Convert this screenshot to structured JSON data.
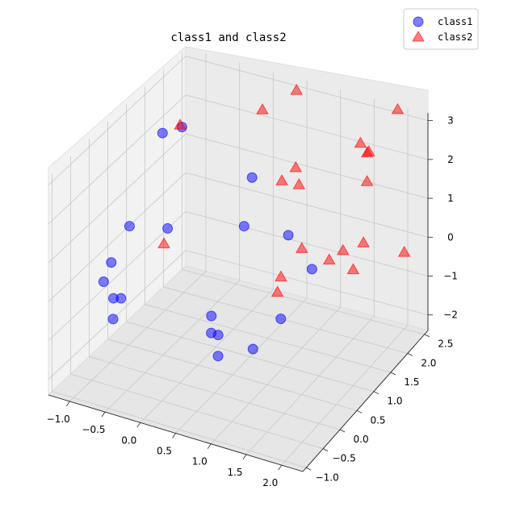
{
  "chart_data": {
    "type": "scatter",
    "title": "class1 and class2",
    "xlabel": "",
    "ylabel": "",
    "zlabel": "",
    "xlim": [
      -1.3,
      2.3
    ],
    "ylim": [
      -1.1,
      2.6
    ],
    "zlim": [
      -2.4,
      3.2
    ],
    "x_ticks": [
      "−1.0",
      "−0.5",
      "0.0",
      "0.5",
      "1.0",
      "1.5",
      "2.0"
    ],
    "y_ticks": [
      "−1.0",
      "−0.5",
      "0.0",
      "0.5",
      "1.0",
      "1.5",
      "2.0",
      "2.5"
    ],
    "z_ticks": [
      "−2",
      "−1",
      "0",
      "1",
      "2",
      "3"
    ],
    "legend_position": "top-right",
    "grid": true,
    "series": [
      {
        "name": "class1",
        "marker": "circle",
        "color": "#0000ff",
        "points": [
          {
            "x": -1.15,
            "y": 1.7,
            "z": 1.9
          },
          {
            "x": -1.0,
            "y": 1.95,
            "z": 1.9
          },
          {
            "x": -1.2,
            "y": 0.9,
            "z": 0.2
          },
          {
            "x": -0.7,
            "y": 1.0,
            "z": 0.3
          },
          {
            "x": -1.25,
            "y": 0.5,
            "z": -0.4
          },
          {
            "x": -1.2,
            "y": 0.2,
            "z": -0.6
          },
          {
            "x": -0.95,
            "y": 0.2,
            "z": -0.9
          },
          {
            "x": -0.9,
            "y": -0.1,
            "z": -0.6
          },
          {
            "x": -0.8,
            "y": -0.3,
            "z": -0.9
          },
          {
            "x": -0.1,
            "y": 2.2,
            "z": 0.8
          },
          {
            "x": 0.1,
            "y": 1.6,
            "z": 0.2
          },
          {
            "x": 0.3,
            "y": 0.3,
            "z": -0.8
          },
          {
            "x": 0.4,
            "y": 0.1,
            "z": -1.0
          },
          {
            "x": 0.5,
            "y": 0.1,
            "z": -1.0
          },
          {
            "x": 0.6,
            "y": -0.1,
            "z": -1.3
          },
          {
            "x": 0.8,
            "y": 1.5,
            "z": 0.4
          },
          {
            "x": 1.2,
            "y": 0.5,
            "z": -0.6
          },
          {
            "x": 1.0,
            "y": 0.1,
            "z": -1.1
          },
          {
            "x": 1.4,
            "y": 1.0,
            "z": 0.3
          }
        ]
      },
      {
        "name": "class2",
        "marker": "triangle",
        "color": "#ff0000",
        "points": [
          {
            "x": -1.0,
            "y": 1.9,
            "z": 2.0
          },
          {
            "x": -0.7,
            "y": 0.9,
            "z": 0.0
          },
          {
            "x": 0.0,
            "y": 2.3,
            "z": 2.5
          },
          {
            "x": 0.4,
            "y": 2.5,
            "z": 3.0
          },
          {
            "x": 0.55,
            "y": 1.8,
            "z": 1.4
          },
          {
            "x": 0.65,
            "y": 2.0,
            "z": 1.6
          },
          {
            "x": 0.75,
            "y": 1.9,
            "z": 1.3
          },
          {
            "x": 1.4,
            "y": 2.4,
            "z": 2.2
          },
          {
            "x": 1.5,
            "y": 2.4,
            "z": 2.0
          },
          {
            "x": 1.55,
            "y": 2.35,
            "z": 2.1
          },
          {
            "x": 1.6,
            "y": 2.2,
            "z": 1.5
          },
          {
            "x": 1.1,
            "y": 1.3,
            "z": 0.4
          },
          {
            "x": 1.0,
            "y": 0.9,
            "z": 0.0
          },
          {
            "x": 1.0,
            "y": 0.8,
            "z": -0.3
          },
          {
            "x": 1.5,
            "y": 1.3,
            "z": 0.3
          },
          {
            "x": 1.6,
            "y": 1.5,
            "z": 0.4
          },
          {
            "x": 1.8,
            "y": 1.7,
            "z": 0.5
          },
          {
            "x": 1.8,
            "y": 1.4,
            "z": 0.1
          },
          {
            "x": 2.3,
            "y": 1.9,
            "z": 0.3
          },
          {
            "x": 1.9,
            "y": 2.5,
            "z": 3.2
          }
        ]
      }
    ]
  }
}
